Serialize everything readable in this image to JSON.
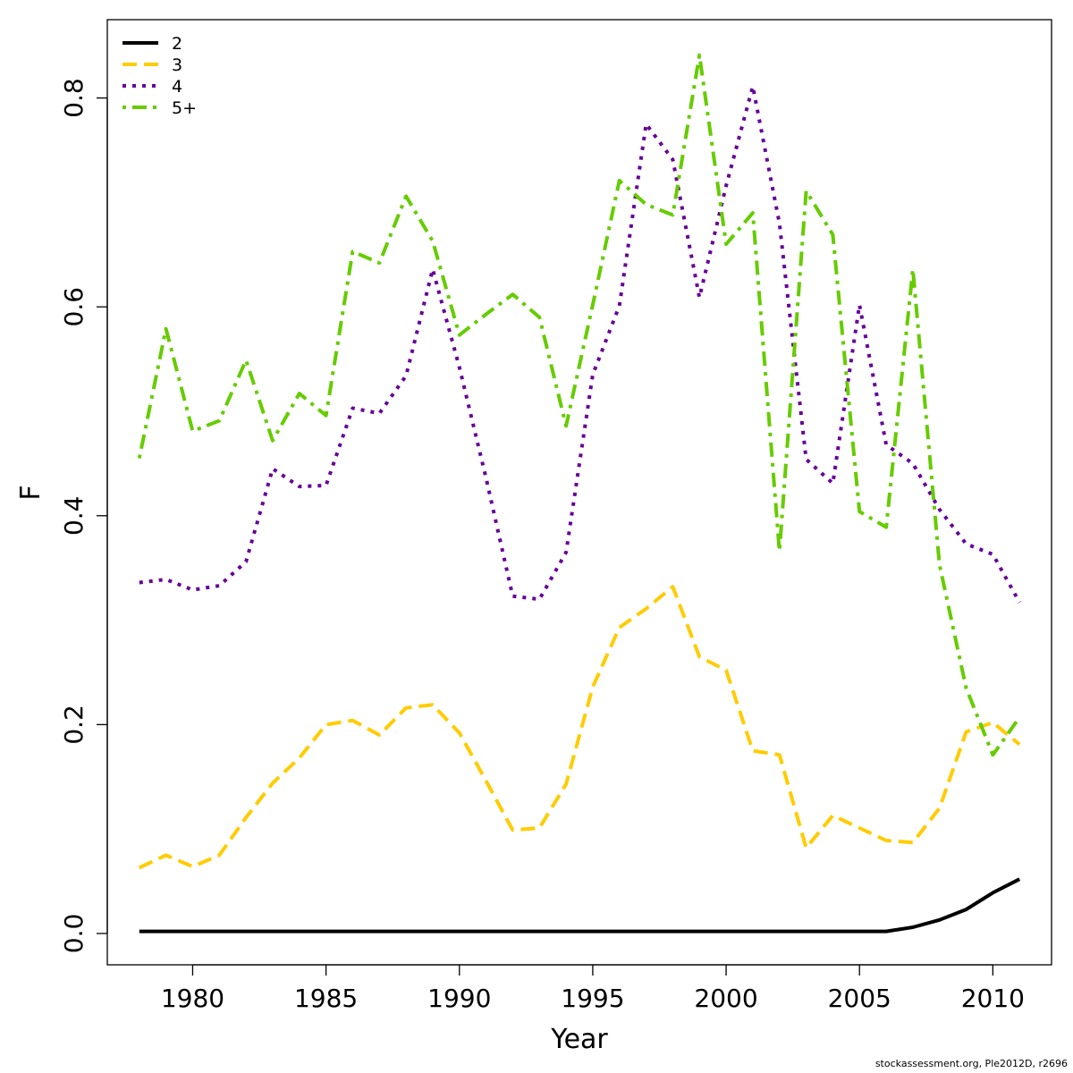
{
  "chart_data": {
    "type": "line",
    "title": "",
    "xlabel": "Year",
    "ylabel": "F",
    "xlim": [
      1976.8,
      2012.2
    ],
    "ylim": [
      -0.03,
      0.875
    ],
    "x_ticks": [
      1980,
      1985,
      1990,
      1995,
      2000,
      2005,
      2010
    ],
    "y_ticks": [
      0.0,
      0.2,
      0.4,
      0.6,
      0.8
    ],
    "y_tick_labels": [
      "0.0",
      "0.2",
      "0.4",
      "0.6",
      "0.8"
    ],
    "grid": false,
    "legend_position": "top-left",
    "x": [
      1978,
      1979,
      1980,
      1981,
      1982,
      1983,
      1984,
      1985,
      1986,
      1987,
      1988,
      1989,
      1990,
      1991,
      1992,
      1993,
      1994,
      1995,
      1996,
      1997,
      1998,
      1999,
      2000,
      2001,
      2002,
      2003,
      2004,
      2005,
      2006,
      2007,
      2008,
      2009,
      2010,
      2011
    ],
    "series": [
      {
        "name": "2",
        "color": "#000000",
        "dash": "solid",
        "width": 4,
        "values": [
          0.002,
          0.002,
          0.002,
          0.002,
          0.002,
          0.002,
          0.002,
          0.002,
          0.002,
          0.002,
          0.002,
          0.002,
          0.002,
          0.002,
          0.002,
          0.002,
          0.002,
          0.002,
          0.002,
          0.002,
          0.002,
          0.002,
          0.002,
          0.002,
          0.002,
          0.002,
          0.002,
          0.002,
          0.002,
          0.006,
          0.013,
          0.023,
          0.039,
          0.052
        ]
      },
      {
        "name": "3",
        "color": "#FFCC00",
        "dash": "dashed",
        "width": 4,
        "values": [
          0.063,
          0.075,
          0.064,
          0.075,
          0.111,
          0.144,
          0.168,
          0.2,
          0.204,
          0.19,
          0.216,
          0.219,
          0.192,
          0.146,
          0.099,
          0.101,
          0.143,
          0.236,
          0.293,
          0.311,
          0.332,
          0.265,
          0.252,
          0.175,
          0.171,
          0.082,
          0.113,
          0.101,
          0.089,
          0.087,
          0.12,
          0.193,
          0.202,
          0.181
        ]
      },
      {
        "name": "4",
        "color": "#660099",
        "dash": "dotted",
        "width": 4,
        "values": [
          0.336,
          0.339,
          0.329,
          0.333,
          0.356,
          0.445,
          0.428,
          0.429,
          0.503,
          0.498,
          0.534,
          0.636,
          0.542,
          0.436,
          0.323,
          0.32,
          0.365,
          0.535,
          0.601,
          0.775,
          0.741,
          0.609,
          0.716,
          0.811,
          0.68,
          0.454,
          0.431,
          0.602,
          0.468,
          0.45,
          0.406,
          0.373,
          0.363,
          0.317
        ]
      },
      {
        "name": "5+",
        "color": "#66CC00",
        "dash": "dotdash",
        "width": 4,
        "values": [
          0.455,
          0.579,
          0.481,
          0.491,
          0.549,
          0.472,
          0.517,
          0.496,
          0.653,
          0.642,
          0.706,
          0.663,
          0.573,
          0.593,
          0.612,
          0.59,
          0.486,
          0.602,
          0.721,
          0.698,
          0.688,
          0.841,
          0.66,
          0.69,
          0.366,
          0.711,
          0.669,
          0.404,
          0.389,
          0.636,
          0.353,
          0.235,
          0.171,
          0.207
        ]
      }
    ]
  },
  "credit": "stockassessment.org, Ple2012D, r2696"
}
